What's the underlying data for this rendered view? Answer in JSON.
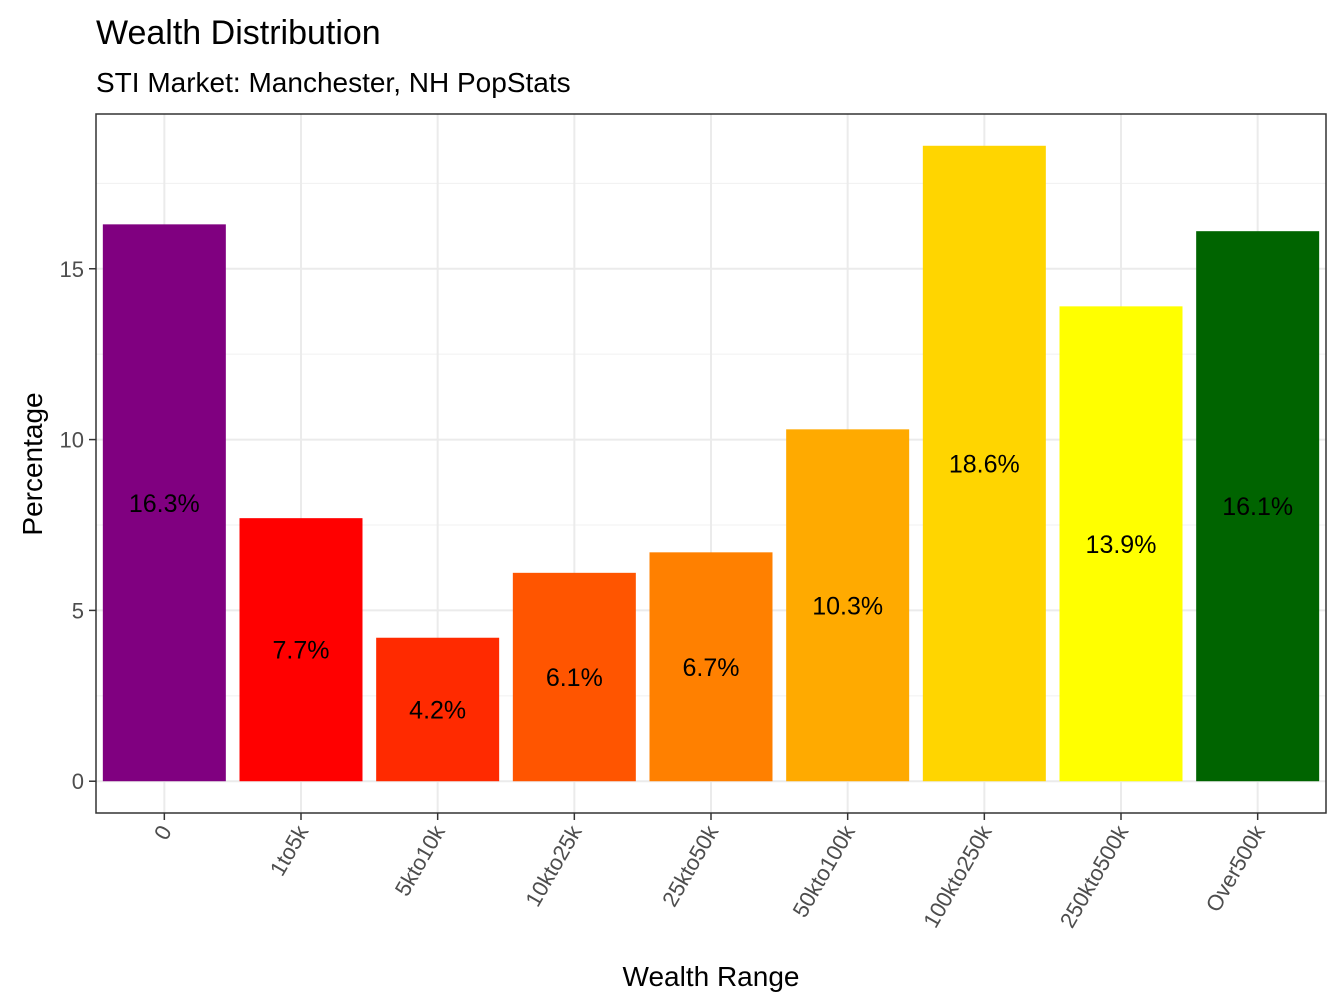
{
  "chart_data": {
    "type": "bar",
    "title": "Wealth Distribution",
    "subtitle": "STI Market: Manchester, NH PopStats",
    "xlabel": "Wealth Range",
    "ylabel": "Percentage",
    "categories": [
      "0",
      "1to5k",
      "5kto10k",
      "10kto25k",
      "25kto50k",
      "50kto100k",
      "100kto250k",
      "250kto500k",
      "Over500k"
    ],
    "values": [
      16.3,
      7.7,
      4.2,
      6.1,
      6.7,
      10.3,
      18.6,
      13.9,
      16.1
    ],
    "labels": [
      "16.3%",
      "7.7%",
      "4.2%",
      "6.1%",
      "6.7%",
      "10.3%",
      "18.6%",
      "13.9%",
      "16.1%"
    ],
    "colors": [
      "#800080",
      "#ff0000",
      "#ff2a00",
      "#ff5500",
      "#ff8000",
      "#ffaa00",
      "#ffd500",
      "#ffff00",
      "#006400"
    ],
    "yticks": [
      0,
      5,
      10,
      15
    ],
    "ylim": [
      -0.93,
      19.53
    ],
    "grid": true,
    "legend": "none"
  }
}
